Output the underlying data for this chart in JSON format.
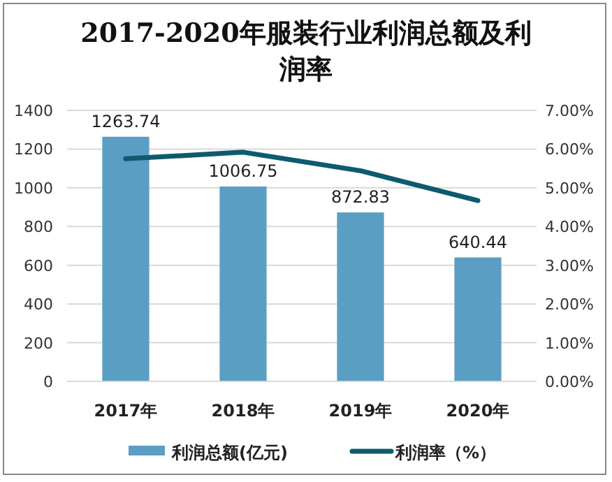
{
  "chart_data": {
    "type": "bar",
    "title": "2017-2020年服装行业利润总额及利润率",
    "categories": [
      "2017年",
      "2018年",
      "2019年",
      "2020年"
    ],
    "series": [
      {
        "name": "利润总额(亿元)",
        "color": "#5a9ec4",
        "values": [
          1263.74,
          1006.75,
          872.83,
          640.44
        ],
        "value_labels": [
          "1263.74",
          "1006.75",
          "872.83",
          "640.44"
        ]
      },
      {
        "name": "利润率（%）",
        "type": "line",
        "axis": "y2",
        "color": "#0e5a6e",
        "values": [
          5.75,
          5.92,
          5.44,
          4.67
        ]
      }
    ],
    "ylim": [
      0,
      1400
    ],
    "yticks": [
      0,
      200,
      400,
      600,
      800,
      1000,
      1200,
      1400
    ],
    "y2lim": [
      0,
      7
    ],
    "y2ticks": [
      {
        "value": 0,
        "label": "0.00%"
      },
      {
        "value": 1,
        "label": "1.00%"
      },
      {
        "value": 2,
        "label": "2.00%"
      },
      {
        "value": 3,
        "label": "3.00%"
      },
      {
        "value": 4,
        "label": "4.00%"
      },
      {
        "value": 5,
        "label": "5.00%"
      },
      {
        "value": 6,
        "label": "6.00%"
      },
      {
        "value": 7,
        "label": "7.00%"
      }
    ],
    "grid": "y",
    "legend": "bottom",
    "marker": "none",
    "line_style": "solid"
  }
}
